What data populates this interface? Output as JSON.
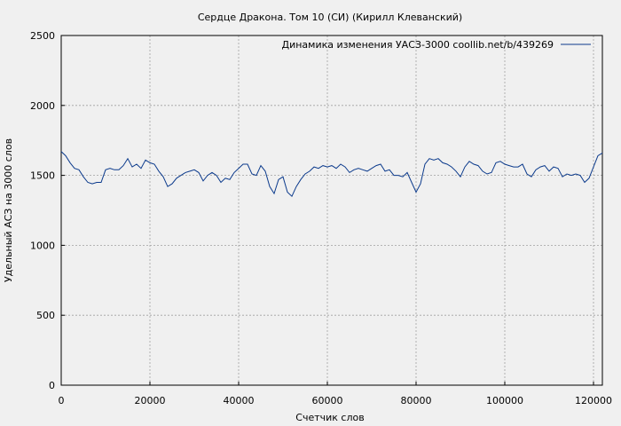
{
  "chart_data": {
    "type": "line",
    "title": "Сердце Дракона. Том 10 (СИ) (Кирилл Клеванский)",
    "xlabel": "Счетчик слов",
    "ylabel": "Удельный АСЗ на 3000 слов",
    "xlim": [
      0,
      122000
    ],
    "ylim": [
      0,
      2500
    ],
    "xticks": [
      0,
      20000,
      40000,
      60000,
      80000,
      100000,
      120000
    ],
    "yticks": [
      0,
      500,
      1000,
      1500,
      2000,
      2500
    ],
    "grid": true,
    "legend_position": "top-right",
    "series": [
      {
        "name": "Динамика изменения УАСЗ-3000  coollib.net/b/439269",
        "color": "#0b3a8c",
        "x": [
          0,
          1000,
          2000,
          3000,
          4000,
          5000,
          6000,
          7000,
          8000,
          9000,
          10000,
          11000,
          12000,
          13000,
          14000,
          15000,
          16000,
          17000,
          18000,
          19000,
          20000,
          21000,
          22000,
          23000,
          24000,
          25000,
          26000,
          27000,
          28000,
          29000,
          30000,
          31000,
          32000,
          33000,
          34000,
          35000,
          36000,
          37000,
          38000,
          39000,
          40000,
          41000,
          42000,
          43000,
          44000,
          45000,
          46000,
          47000,
          48000,
          49000,
          50000,
          51000,
          52000,
          53000,
          54000,
          55000,
          56000,
          57000,
          58000,
          59000,
          60000,
          61000,
          62000,
          63000,
          64000,
          65000,
          66000,
          67000,
          68000,
          69000,
          70000,
          71000,
          72000,
          73000,
          74000,
          75000,
          76000,
          77000,
          78000,
          79000,
          80000,
          81000,
          82000,
          83000,
          84000,
          85000,
          86000,
          87000,
          88000,
          89000,
          90000,
          91000,
          92000,
          93000,
          94000,
          95000,
          96000,
          97000,
          98000,
          99000,
          100000,
          101000,
          102000,
          103000,
          104000,
          105000,
          106000,
          107000,
          108000,
          109000,
          110000,
          111000,
          112000,
          113000,
          114000,
          115000,
          116000,
          117000,
          118000,
          119000,
          120000,
          121000,
          122000
        ],
        "y": [
          1670,
          1640,
          1590,
          1550,
          1540,
          1490,
          1450,
          1440,
          1450,
          1450,
          1540,
          1550,
          1540,
          1540,
          1570,
          1620,
          1560,
          1580,
          1550,
          1610,
          1590,
          1580,
          1530,
          1490,
          1420,
          1440,
          1480,
          1500,
          1520,
          1530,
          1540,
          1520,
          1460,
          1500,
          1520,
          1500,
          1450,
          1480,
          1470,
          1520,
          1550,
          1580,
          1580,
          1510,
          1500,
          1570,
          1530,
          1420,
          1370,
          1470,
          1490,
          1380,
          1350,
          1420,
          1470,
          1510,
          1530,
          1560,
          1550,
          1570,
          1560,
          1570,
          1550,
          1580,
          1560,
          1520,
          1540,
          1550,
          1540,
          1530,
          1550,
          1570,
          1580,
          1530,
          1540,
          1500,
          1500,
          1490,
          1520,
          1450,
          1380,
          1440,
          1580,
          1620,
          1610,
          1620,
          1590,
          1580,
          1560,
          1530,
          1490,
          1560,
          1600,
          1580,
          1570,
          1530,
          1510,
          1520,
          1590,
          1600,
          1580,
          1570,
          1560,
          1560,
          1580,
          1510,
          1490,
          1540,
          1560,
          1570,
          1530,
          1560,
          1550,
          1490,
          1510,
          1500,
          1510,
          1500,
          1450,
          1480,
          1560,
          1640,
          1660
        ]
      }
    ]
  }
}
